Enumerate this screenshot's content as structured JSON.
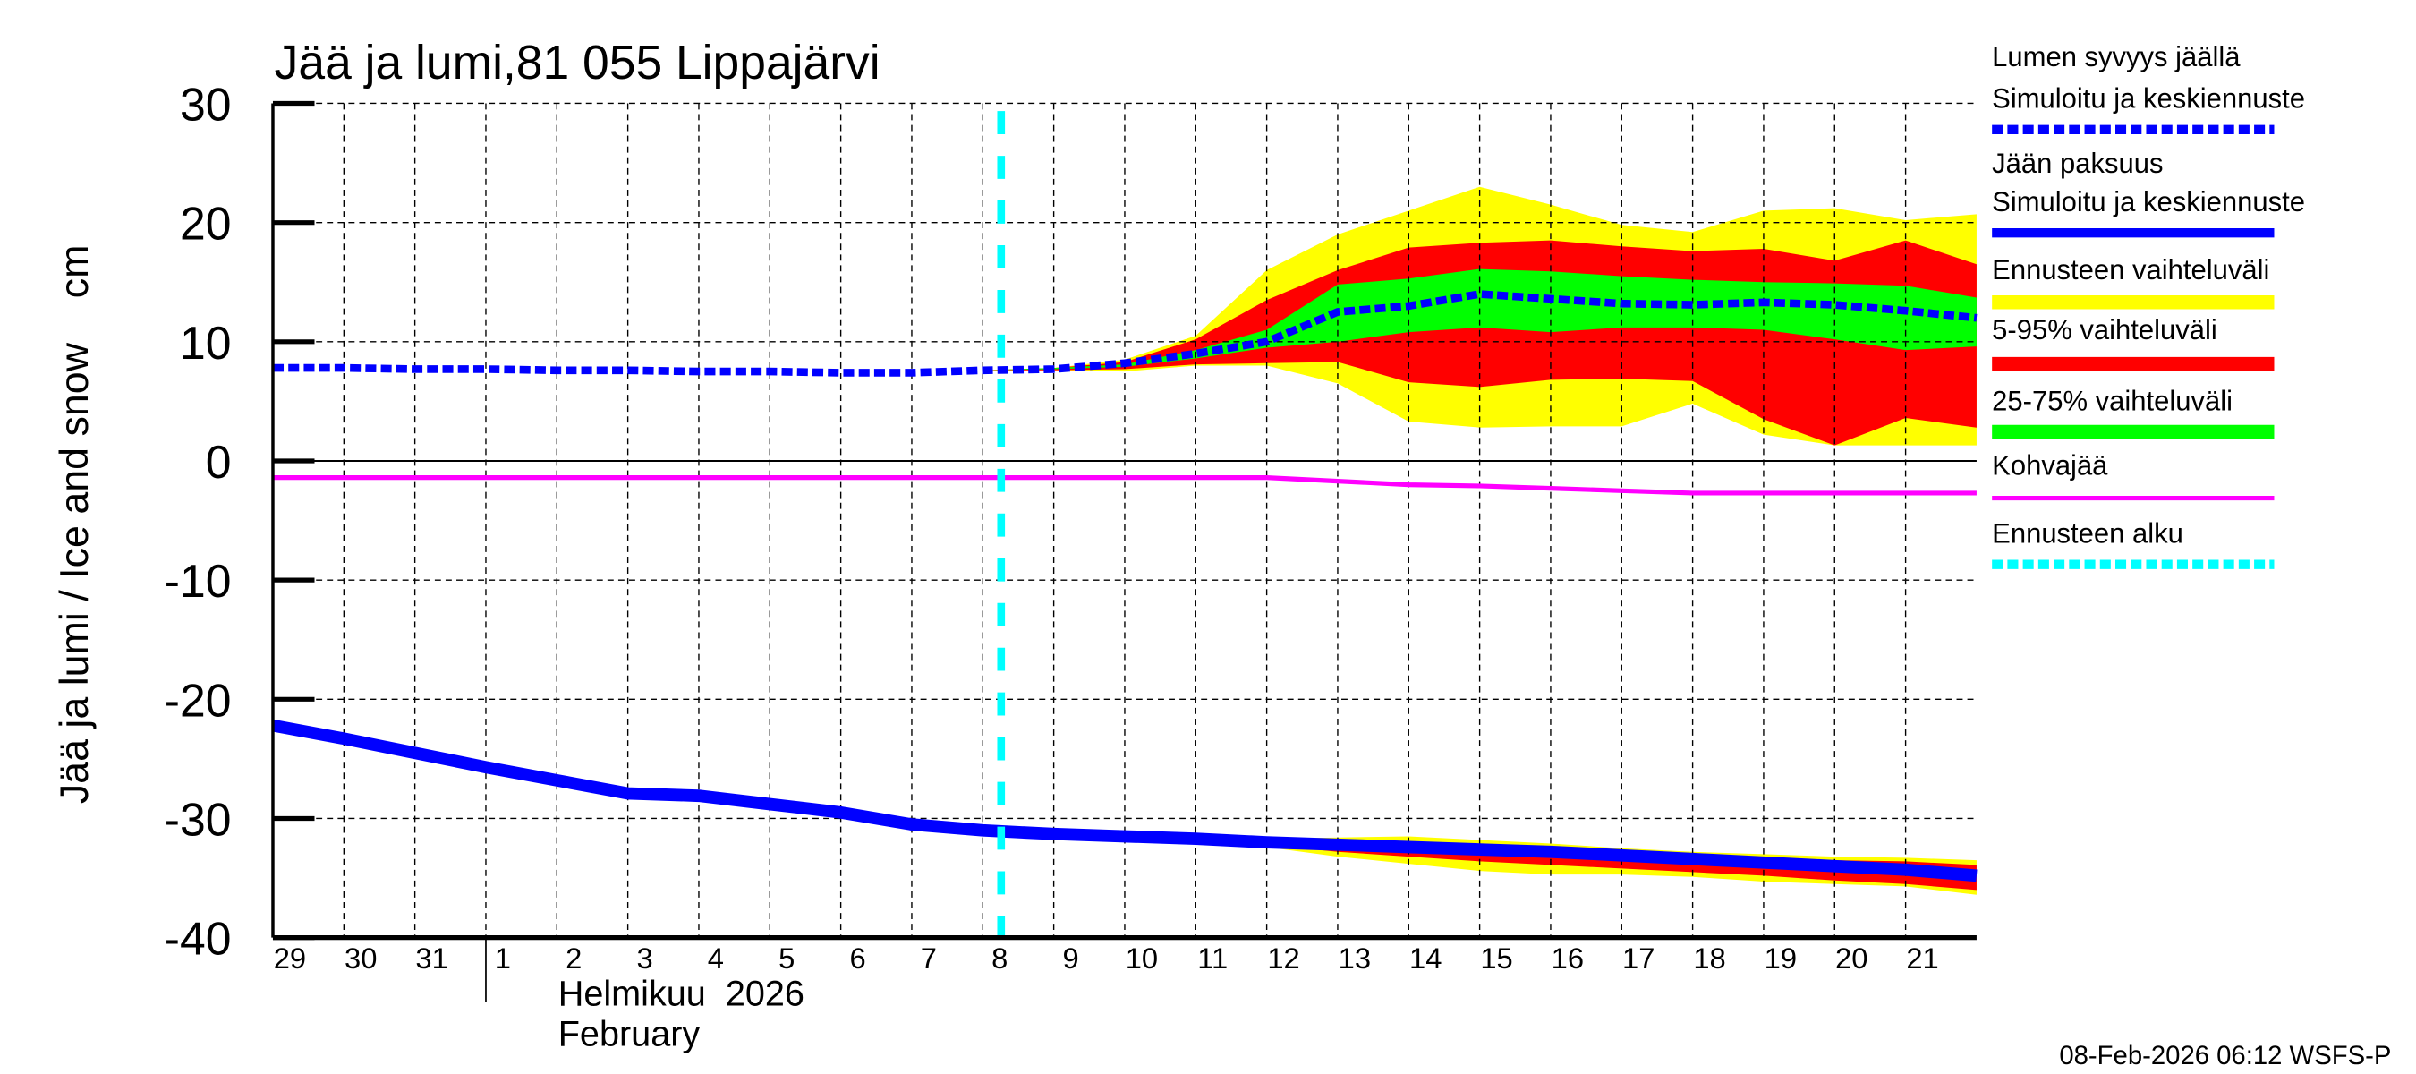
{
  "chart_data": {
    "type": "area",
    "title": "Jää ja lumi,81 055 Lippajärvi",
    "ylabel": "Jää ja lumi / Ice and snow    cm",
    "ylim": [
      -40,
      30
    ],
    "yticks": [
      30,
      20,
      10,
      0,
      -10,
      -20,
      -30,
      -40
    ],
    "grid": true,
    "legend_position": "right",
    "x_tick_labels": [
      "29",
      "30",
      "31",
      "1",
      "2",
      "3",
      "4",
      "5",
      "6",
      "7",
      "8",
      "9",
      "10",
      "11",
      "12",
      "13",
      "14",
      "15",
      "16",
      "17",
      "18",
      "19",
      "20",
      "21"
    ],
    "month_label_fi": "Helmikuu  2026",
    "month_label_en": "February",
    "x": [
      "2026-01-29",
      "2026-01-30",
      "2026-01-31",
      "2026-02-01",
      "2026-02-02",
      "2026-02-03",
      "2026-02-04",
      "2026-02-05",
      "2026-02-06",
      "2026-02-07",
      "2026-02-08",
      "2026-02-09",
      "2026-02-10",
      "2026-02-11",
      "2026-02-12",
      "2026-02-13",
      "2026-02-14",
      "2026-02-15",
      "2026-02-16",
      "2026-02-17",
      "2026-02-18",
      "2026-02-19",
      "2026-02-20",
      "2026-02-21",
      "2026-02-22"
    ],
    "forecast_start": "2026-02-08 06:12",
    "snow": {
      "median": [
        7.8,
        7.8,
        7.7,
        7.7,
        7.6,
        7.6,
        7.5,
        7.5,
        7.4,
        7.4,
        7.6,
        7.7,
        8.2,
        9.0,
        10.0,
        12.5,
        13.0,
        14.0,
        13.6,
        13.2,
        13.1,
        13.3,
        13.1,
        12.6,
        12.0
      ],
      "band_start_index": 10,
      "p0_100_upper": [
        7.6,
        7.8,
        8.5,
        10.5,
        16.0,
        19.0,
        21.0,
        23.0,
        21.5,
        19.8,
        19.2,
        21.0,
        21.2,
        20.2,
        20.7
      ],
      "p0_100_lower": [
        7.6,
        7.6,
        7.5,
        8.0,
        8.0,
        6.5,
        3.3,
        2.8,
        2.9,
        2.9,
        4.8,
        2.2,
        1.3,
        1.3,
        1.3
      ],
      "p5_95_upper": [
        7.6,
        7.8,
        8.3,
        10.2,
        13.5,
        16.0,
        17.9,
        18.3,
        18.5,
        18.0,
        17.6,
        17.8,
        16.8,
        18.5,
        16.5
      ],
      "p5_95_lower": [
        7.6,
        7.6,
        7.7,
        8.1,
        8.2,
        8.3,
        6.6,
        6.2,
        6.8,
        6.9,
        6.7,
        3.5,
        1.3,
        3.6,
        2.8
      ],
      "p25_75_upper": [
        7.6,
        7.8,
        8.1,
        9.3,
        11.0,
        14.8,
        15.3,
        16.1,
        15.9,
        15.5,
        15.2,
        15.0,
        14.9,
        14.7,
        13.7
      ],
      "p25_75_lower": [
        7.6,
        7.7,
        7.9,
        8.6,
        9.5,
        10.0,
        10.8,
        11.2,
        10.8,
        11.2,
        11.2,
        11.0,
        10.2,
        9.3,
        9.6
      ]
    },
    "ice": {
      "median": [
        -22.2,
        -23.3,
        -24.5,
        -25.7,
        -26.8,
        -27.9,
        -28.1,
        -28.8,
        -29.5,
        -30.5,
        -31.0,
        -31.3,
        -31.5,
        -31.7,
        -32.0,
        -32.2,
        -32.4,
        -32.6,
        -32.8,
        -33.1,
        -33.4,
        -33.7,
        -34.0,
        -34.3,
        -34.8
      ],
      "band_start_index": 13,
      "p0_100_upper": [
        -31.6,
        -31.7,
        -31.6,
        -31.5,
        -31.8,
        -32.1,
        -32.5,
        -32.8,
        -33.0,
        -33.2,
        -33.3,
        -33.5
      ],
      "p0_100_lower": [
        -31.8,
        -32.4,
        -33.2,
        -33.8,
        -34.4,
        -34.7,
        -34.7,
        -34.9,
        -35.3,
        -35.5,
        -35.7,
        -36.4
      ],
      "p5_95_upper": [
        -31.6,
        -31.8,
        -31.8,
        -32.0,
        -32.2,
        -32.5,
        -32.8,
        -33.1,
        -33.3,
        -33.5,
        -33.6,
        -33.9
      ],
      "p5_95_lower": [
        -31.8,
        -32.2,
        -32.8,
        -33.2,
        -33.6,
        -33.9,
        -34.2,
        -34.5,
        -34.8,
        -35.2,
        -35.5,
        -36.0
      ]
    },
    "slush_ice": [
      -1.4,
      -1.4,
      -1.4,
      -1.4,
      -1.4,
      -1.4,
      -1.4,
      -1.4,
      -1.4,
      -1.4,
      -1.4,
      -1.4,
      -1.4,
      -1.4,
      -1.4,
      -1.7,
      -2.0,
      -2.1,
      -2.3,
      -2.5,
      -2.7,
      -2.7,
      -2.7,
      -2.7,
      -2.7
    ],
    "legend": [
      {
        "label": "Lumen syvyys jäällä",
        "label2": "Simuloitu ja keskiennuste",
        "color": "#0000ff",
        "style": "dashed"
      },
      {
        "label": "Jään paksuus",
        "label2": "Simuloitu ja keskiennuste",
        "color": "#0000ff",
        "style": "solid"
      },
      {
        "label": "Ennusteen vaihteluväli",
        "color": "#ffff00",
        "style": "band"
      },
      {
        "label": "5-95% vaihteluväli",
        "color": "#ff0000",
        "style": "band"
      },
      {
        "label": "25-75% vaihteluväli",
        "color": "#00ff00",
        "style": "band"
      },
      {
        "label": "Kohvajää",
        "color": "#ff00ff",
        "style": "solid"
      },
      {
        "label": "Ennusteen alku",
        "color": "#00ffff",
        "style": "dashed"
      }
    ]
  },
  "footer": "08-Feb-2026 06:12 WSFS-P"
}
